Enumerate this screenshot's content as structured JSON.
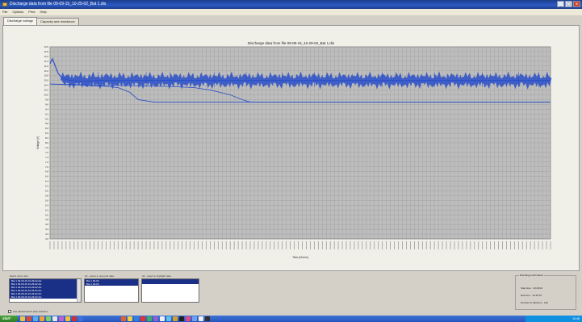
{
  "window": {
    "title": "Discharge data from file 09-09-15_10-29-02_Bat 1.dis"
  },
  "menu": [
    "File",
    "Options",
    "Print",
    "Help"
  ],
  "tabs": [
    {
      "label": "Discharge voltage",
      "active": true
    },
    {
      "label": "Capacity and resistance",
      "active": false
    }
  ],
  "chart_data": {
    "type": "line",
    "title": "Discharge data from file 09-09-15_10-29-02_Bat 1.dis",
    "xlabel": "Time (hh:mm)",
    "ylabel": "Voltage (V)",
    "yticks": [
      "12.0",
      "11.8",
      "11.6",
      "11.4",
      "11.2",
      "11.0",
      "10.8",
      "10.6",
      "10.4",
      "10.2",
      "10.0",
      "9.8",
      "9.6",
      "9.4",
      "9.2",
      "9.0",
      "8.8",
      "8.6",
      "8.4",
      "8.2",
      "8.0",
      "7.8",
      "7.6",
      "7.4",
      "7.2",
      "7.0",
      "6.8",
      "6.6",
      "6.4",
      "6.2",
      "6.0",
      "5.8",
      "5.6",
      "5.4",
      "5.2",
      "5.0",
      "4.8",
      "4.6",
      "4.4",
      "4.2",
      "4.0"
    ],
    "ylim": [
      4.0,
      12.0
    ],
    "xlim": [
      0,
      125
    ],
    "grid": true,
    "series": [
      {
        "values_x": [
          0,
          0.6,
          1.3,
          2,
          3,
          5,
          8,
          12,
          20,
          40,
          60,
          80,
          100,
          125
        ],
        "values_y": [
          11.3,
          11.5,
          11.2,
          10.9,
          10.7,
          10.6,
          10.55,
          10.6,
          10.6,
          10.6,
          10.6,
          10.6,
          10.6,
          10.6
        ]
      },
      {
        "values_x": [
          0,
          8,
          14,
          17,
          20,
          22,
          26,
          28,
          40,
          60,
          80,
          100,
          125
        ],
        "values_y": [
          10.45,
          10.4,
          10.35,
          10.3,
          10.1,
          9.8,
          9.7,
          9.7,
          9.7,
          9.7,
          9.7,
          9.7,
          9.7
        ]
      },
      {
        "values_x": [
          0,
          15,
          30,
          36,
          40,
          45,
          48,
          50,
          60,
          80,
          100,
          125
        ],
        "values_y": [
          10.45,
          10.4,
          10.35,
          10.3,
          10.2,
          10.0,
          9.8,
          9.7,
          9.7,
          9.7,
          9.7,
          9.7
        ]
      }
    ],
    "colors": {
      "line": "#2a4fc8",
      "grid": "#9a9a9a",
      "plot_bg": "#bdbdbd"
    }
  },
  "lists": {
    "list1": {
      "label": "Select cell to plot",
      "items": [
        "Bat 1 09-09-15 10-29-02.dis",
        "Bat 1 09-09-15 10-29-02.dis",
        "Bat 1 09-09-15 10-29-02.dis",
        "Bat 1 09-09-15 10-29-02.dis",
        "Bat 1 09-09-15 10-29-02.dis",
        "Bat 1 09-09-15 10-29-02.dis"
      ]
    },
    "list2": {
      "label": "All - select to stop plot data",
      "items": [
        "Bat 1 09-09",
        "Bat 1 09-09"
      ]
    },
    "list3": {
      "label": "All - select to highlight data",
      "items": []
    }
  },
  "info": {
    "title": "Discharge information",
    "start_time": "Start time : 10:29:02",
    "end_time": "End time : 12:35:15",
    "batteries": "Number of batteries : 216"
  },
  "checkbox": {
    "label": "Use discard (don't plot) selection"
  },
  "taskbar": {
    "start": "start",
    "clock": "10:45"
  }
}
